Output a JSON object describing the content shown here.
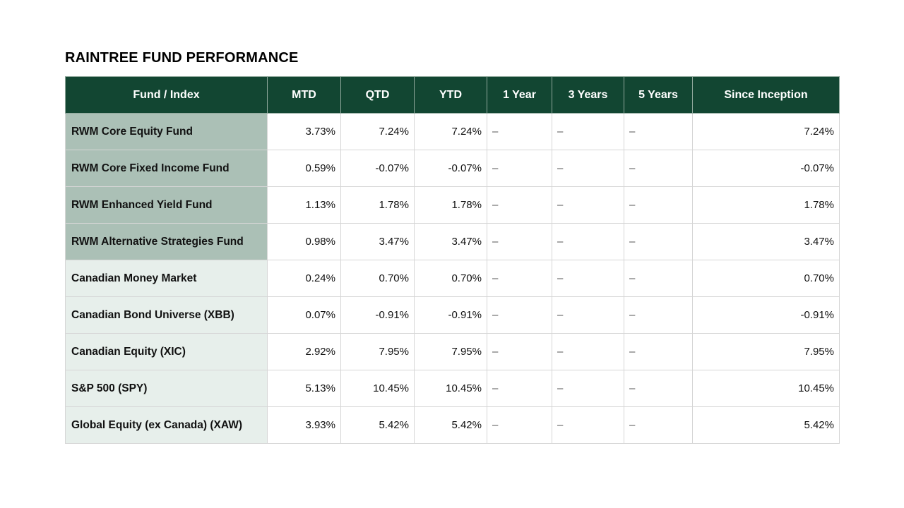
{
  "title": "RAINTREE FUND PERFORMANCE",
  "colors": {
    "header_bg": "#124632",
    "header_text": "#ffffff",
    "fund_name_bg": "#abc0b6",
    "index_name_bg": "#e7efeb"
  },
  "table": {
    "headers": [
      "Fund / Index",
      "MTD",
      "QTD",
      "YTD",
      "1 Year",
      "3 Years",
      "5 Years",
      "Since Inception"
    ],
    "rows": [
      {
        "type": "fund",
        "name": "RWM Core Equity Fund",
        "mtd": "3.73%",
        "qtd": "7.24%",
        "ytd": "7.24%",
        "y1": "–",
        "y3": "–",
        "y5": "–",
        "inception": "7.24%"
      },
      {
        "type": "fund",
        "name": "RWM Core Fixed Income Fund",
        "mtd": "0.59%",
        "qtd": "-0.07%",
        "ytd": "-0.07%",
        "y1": "–",
        "y3": "–",
        "y5": "–",
        "inception": "-0.07%"
      },
      {
        "type": "fund",
        "name": "RWM Enhanced Yield Fund",
        "mtd": "1.13%",
        "qtd": "1.78%",
        "ytd": "1.78%",
        "y1": "–",
        "y3": "–",
        "y5": "–",
        "inception": "1.78%"
      },
      {
        "type": "fund",
        "name": "RWM Alternative Strategies Fund",
        "mtd": "0.98%",
        "qtd": "3.47%",
        "ytd": "3.47%",
        "y1": "–",
        "y3": "–",
        "y5": "–",
        "inception": "3.47%"
      },
      {
        "type": "index",
        "name": "Canadian Money Market",
        "mtd": "0.24%",
        "qtd": "0.70%",
        "ytd": "0.70%",
        "y1": "–",
        "y3": "–",
        "y5": "–",
        "inception": "0.70%"
      },
      {
        "type": "index",
        "name": "Canadian Bond Universe (XBB)",
        "mtd": "0.07%",
        "qtd": "-0.91%",
        "ytd": "-0.91%",
        "y1": "–",
        "y3": "–",
        "y5": "–",
        "inception": "-0.91%"
      },
      {
        "type": "index",
        "name": "Canadian Equity (XIC)",
        "mtd": "2.92%",
        "qtd": "7.95%",
        "ytd": "7.95%",
        "y1": "–",
        "y3": "–",
        "y5": "–",
        "inception": "7.95%"
      },
      {
        "type": "index",
        "name": "S&P 500 (SPY)",
        "mtd": "5.13%",
        "qtd": "10.45%",
        "ytd": "10.45%",
        "y1": "–",
        "y3": "–",
        "y5": "–",
        "inception": "10.45%"
      },
      {
        "type": "index",
        "name": "Global Equity (ex Canada) (XAW)",
        "mtd": "3.93%",
        "qtd": "5.42%",
        "ytd": "5.42%",
        "y1": "–",
        "y3": "–",
        "y5": "–",
        "inception": "5.42%"
      }
    ]
  }
}
